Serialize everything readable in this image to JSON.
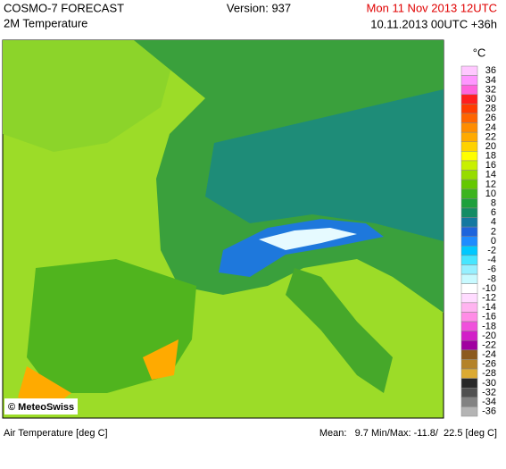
{
  "header": {
    "product": "COSMO-7 FORECAST",
    "field": "2M Temperature",
    "version": "Version: 937",
    "valid": "Mon 11 Nov 2013 12UTC",
    "run": "10.11.2013 00UTC +36h"
  },
  "legend": {
    "unit": "°C",
    "items": [
      {
        "label": "36",
        "color": "#ffc8ff"
      },
      {
        "label": "34",
        "color": "#ff96ff"
      },
      {
        "label": "32",
        "color": "#ff64dc"
      },
      {
        "label": "30",
        "color": "#ff1e1e"
      },
      {
        "label": "28",
        "color": "#ff3c00"
      },
      {
        "label": "26",
        "color": "#ff6400"
      },
      {
        "label": "24",
        "color": "#ff8c00"
      },
      {
        "label": "22",
        "color": "#ffaa00"
      },
      {
        "label": "20",
        "color": "#ffd200"
      },
      {
        "label": "18",
        "color": "#ffff00"
      },
      {
        "label": "16",
        "color": "#c8f000"
      },
      {
        "label": "14",
        "color": "#96dc00"
      },
      {
        "label": "12",
        "color": "#64c800"
      },
      {
        "label": "10",
        "color": "#3cb41e"
      },
      {
        "label": "8",
        "color": "#1ea03c"
      },
      {
        "label": "6",
        "color": "#148c64"
      },
      {
        "label": "4",
        "color": "#1478a0"
      },
      {
        "label": "2",
        "color": "#1e64dc"
      },
      {
        "label": "0",
        "color": "#1e8cff"
      },
      {
        "label": "-2",
        "color": "#00c8ff"
      },
      {
        "label": "-4",
        "color": "#46e6ff"
      },
      {
        "label": "-6",
        "color": "#96f0ff"
      },
      {
        "label": "-8",
        "color": "#c8faff"
      },
      {
        "label": "-10",
        "color": "#ffffff"
      },
      {
        "label": "-12",
        "color": "#ffdcff"
      },
      {
        "label": "-14",
        "color": "#ffb4f0"
      },
      {
        "label": "-16",
        "color": "#ff8ce6"
      },
      {
        "label": "-18",
        "color": "#f050dc"
      },
      {
        "label": "-20",
        "color": "#d21ec8"
      },
      {
        "label": "-22",
        "color": "#a000a0"
      },
      {
        "label": "-24",
        "color": "#8c5a1e"
      },
      {
        "label": "-26",
        "color": "#b48228"
      },
      {
        "label": "-28",
        "color": "#dcaa32"
      },
      {
        "label": "-30",
        "color": "#282828"
      },
      {
        "label": "-32",
        "color": "#505050"
      },
      {
        "label": "-34",
        "color": "#828282"
      },
      {
        "label": "-36",
        "color": "#b4b4b4"
      }
    ]
  },
  "map": {
    "credit": "© MeteoSwiss"
  },
  "footer": {
    "variable": "Air Temperature [deg C]",
    "stats": "Mean:   9.7 Min/Max: -11.8/  22.5 [deg C]"
  }
}
